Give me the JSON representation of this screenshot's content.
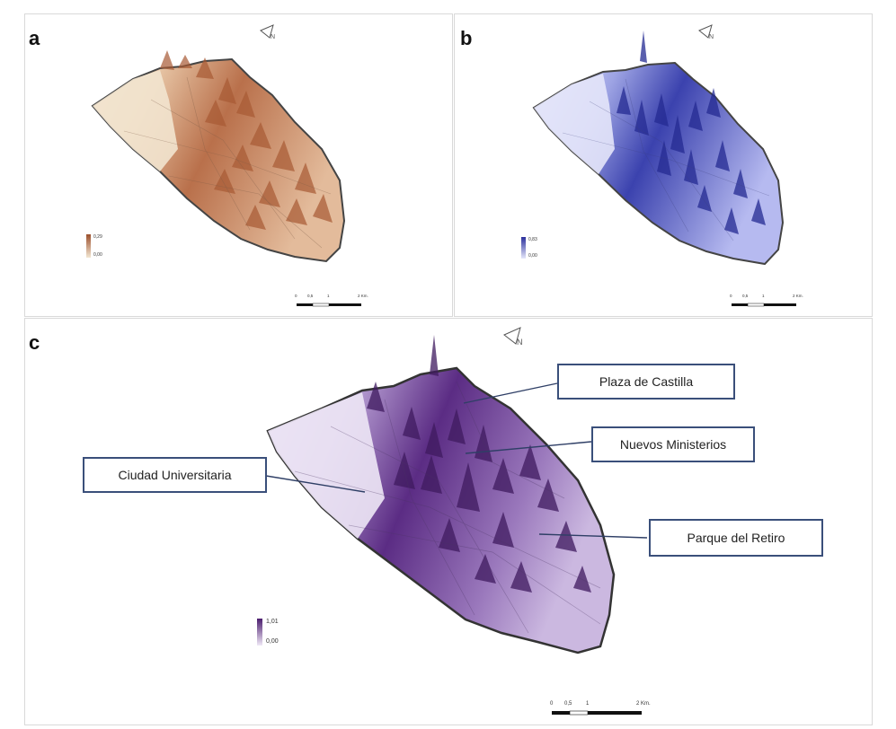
{
  "panels": {
    "a": {
      "letter": "a",
      "legend": {
        "max": "0,29",
        "min": "0,00",
        "color_high": "#9b4f2c",
        "color_low": "#f3e6d2"
      },
      "scale": {
        "ticks": [
          "0",
          "0,5",
          "1",
          "2 Km."
        ]
      }
    },
    "b": {
      "letter": "b",
      "legend": {
        "max": "0,83",
        "min": "0,00",
        "color_high": "#2a2f9c",
        "color_low": "#e6e8fb"
      },
      "scale": {
        "ticks": [
          "0",
          "0,5",
          "1",
          "2 Km."
        ]
      }
    },
    "c": {
      "letter": "c",
      "legend": {
        "max": "1,01",
        "min": "0,00",
        "color_high": "#4b1d6e",
        "color_low": "#efe8f6"
      },
      "scale": {
        "ticks": [
          "0",
          "0,5",
          "1",
          "2 Km."
        ]
      },
      "callouts": [
        {
          "label": "Plaza de Castilla"
        },
        {
          "label": "Nuevos Ministerios"
        },
        {
          "label": "Ciudad Universitaria"
        },
        {
          "label": "Parque del Retiro"
        }
      ]
    }
  },
  "icons": [
    "north-arrow-icon"
  ]
}
